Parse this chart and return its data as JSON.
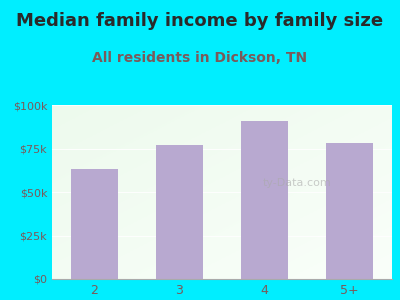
{
  "title": "Median family income by family size",
  "subtitle": "All residents in Dickson, TN",
  "categories": [
    "2",
    "3",
    "4",
    "5+"
  ],
  "values": [
    63000,
    77000,
    91000,
    78000
  ],
  "bar_color": "#b8a9d0",
  "background_color": "#00eeff",
  "title_color": "#2a2a2a",
  "subtitle_color": "#7a5a5a",
  "tick_color": "#7a5a5a",
  "ylim": [
    0,
    100000
  ],
  "yticks": [
    0,
    25000,
    50000,
    75000,
    100000
  ],
  "ytick_labels": [
    "$0",
    "$25k",
    "$50k",
    "$75k",
    "$100k"
  ],
  "watermark": "ty-Data.com",
  "title_fontsize": 13,
  "subtitle_fontsize": 10
}
